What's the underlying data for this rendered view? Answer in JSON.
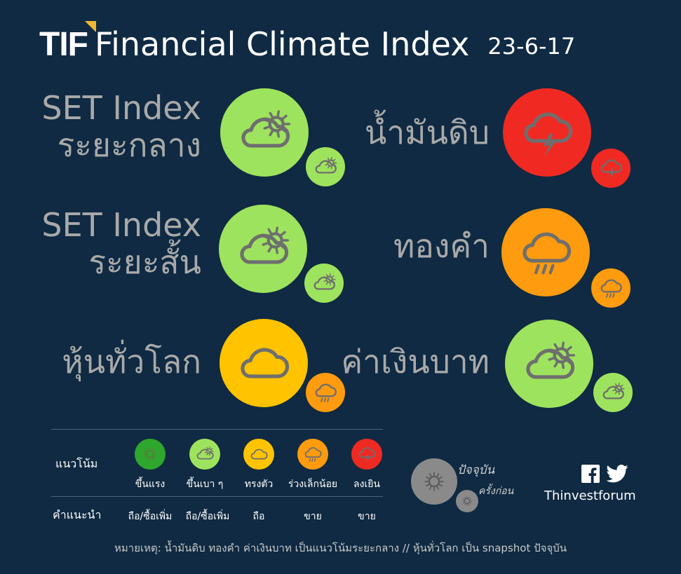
{
  "header": {
    "logo": "TIF",
    "title": "Financial Climate Index",
    "date": "23-6-17"
  },
  "indicators": [
    {
      "line1": "SET Index",
      "line2": "ระยะกลาง",
      "current": "partly-cloudy",
      "previous": "partly-cloudy"
    },
    {
      "line1": "SET Index",
      "line2": "ระยะสั้น",
      "current": "partly-cloudy",
      "previous": "partly-cloudy"
    },
    {
      "line1": "หุ้นทั่วโลก",
      "current": "cloudy",
      "previous": "rain"
    },
    {
      "line1": "น้ำมันดิบ",
      "current": "thunderstorm",
      "previous": "thunderstorm"
    },
    {
      "line1": "ทองคำ",
      "current": "rain",
      "previous": "rain"
    },
    {
      "line1": "ค่าเงินบาท",
      "current": "partly-cloudy",
      "previous": "partly-cloudy"
    }
  ],
  "legend": {
    "trend_label": "แนวโน้ม",
    "advice_label": "คำแนะนำ",
    "items": [
      {
        "trend": "ขึ้นแรง",
        "advice": "ถือ/ซื้อเพิ่ม",
        "color": "#2fa62e",
        "icon": "sun"
      },
      {
        "trend": "ขึ้นเบา ๆ",
        "advice": "ถือ/ซื้อเพิ่ม",
        "color": "#9ee35e",
        "icon": "partly-cloudy"
      },
      {
        "trend": "ทรงตัว",
        "advice": "ถือ",
        "color": "#ffc300",
        "icon": "cloudy"
      },
      {
        "trend": "ร่วงเล็กน้อย",
        "advice": "ขาย",
        "color": "#ff9b0e",
        "icon": "rain"
      },
      {
        "trend": "ลงเยิน",
        "advice": "ขาย",
        "color": "#f02a22",
        "icon": "thunderstorm"
      }
    ]
  },
  "key": {
    "current": "ปัจจุบัน",
    "previous": "ครั้งก่อน"
  },
  "social": {
    "name": "Thinvestforum",
    "icons": [
      "facebook-icon",
      "twitter-icon"
    ]
  },
  "footer": "หมายเหตุ: น้ำมันดิบ ทองคำ ค่าเงินบาท เป็นแนวโน้มระยะกลาง // หุ้นทั่วโลก เป็น snapshot ปัจจุบัน"
}
